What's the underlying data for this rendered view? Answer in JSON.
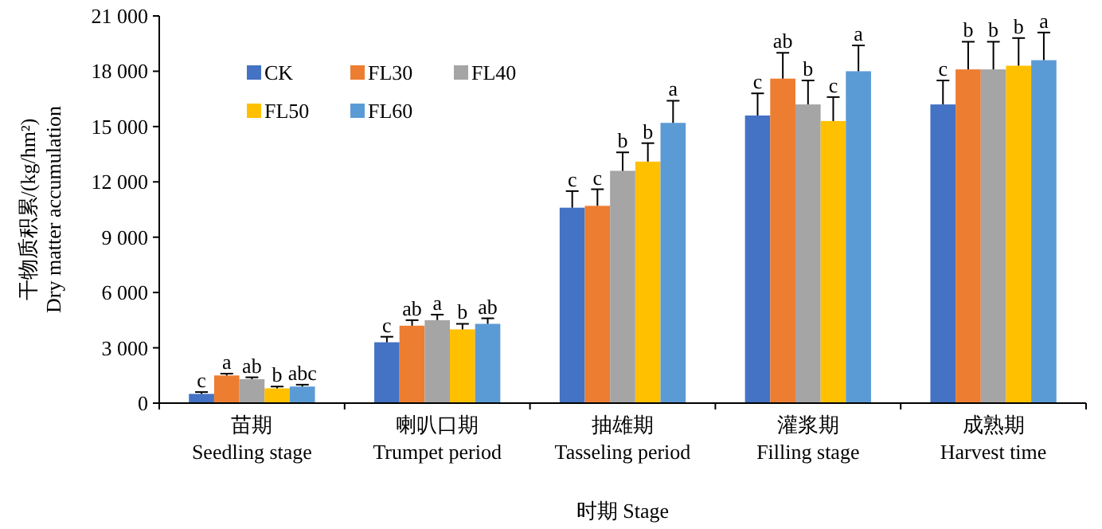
{
  "chart_data": {
    "type": "bar",
    "xlabel": "时期 Stage",
    "ylabel": "干物质积累/(kg/hm²)\nDry matter accumulation",
    "categories": [
      "苗期\nSeedling stage",
      "喇叭口期\nTrumpet period",
      "抽雄期\nTasseling period",
      "灌浆期\nFilling stage",
      "成熟期\nHarvest time"
    ],
    "series": [
      {
        "name": "CK",
        "color": "#4472c4",
        "values": [
          500,
          3300,
          10600,
          15600,
          16200
        ],
        "errors": [
          100,
          300,
          900,
          1200,
          1300
        ],
        "value_labels": [
          "c",
          "c",
          "c",
          "c",
          "c"
        ]
      },
      {
        "name": "FL30",
        "color": "#ed7d31",
        "values": [
          1500,
          4200,
          10700,
          17600,
          18100
        ],
        "errors": [
          100,
          300,
          900,
          1400,
          1500
        ],
        "value_labels": [
          "a",
          "ab",
          "c",
          "ab",
          "b"
        ]
      },
      {
        "name": "FL40",
        "color": "#a5a5a5",
        "values": [
          1300,
          4500,
          12600,
          16200,
          18100
        ],
        "errors": [
          100,
          300,
          1000,
          1300,
          1500
        ],
        "value_labels": [
          "ab",
          "a",
          "b",
          "b",
          "b"
        ]
      },
      {
        "name": "FL50",
        "color": "#ffc000",
        "values": [
          800,
          4000,
          13100,
          15300,
          18300
        ],
        "errors": [
          100,
          300,
          1000,
          1300,
          1500
        ],
        "value_labels": [
          "b",
          "b",
          "b",
          "c",
          "b"
        ]
      },
      {
        "name": "FL60",
        "color": "#5b9bd5",
        "values": [
          900,
          4300,
          15200,
          18000,
          18600
        ],
        "errors": [
          100,
          300,
          1200,
          1400,
          1500
        ],
        "value_labels": [
          "abc",
          "ab",
          "a",
          "a",
          "a"
        ]
      }
    ],
    "ylim": [
      0,
      21000
    ],
    "yticks": [
      0,
      {
        "value": 3000,
        "label": "3 000"
      },
      {
        "value": 6000,
        "label": "6 000"
      },
      {
        "value": 9000,
        "label": "9 000"
      },
      {
        "value": 12000,
        "label": "12 000"
      },
      {
        "value": 15000,
        "label": "15 000"
      },
      {
        "value": 18000,
        "label": "18 000"
      },
      {
        "value": 21000,
        "label": "21 000"
      }
    ],
    "legend": "top left",
    "grid": false
  }
}
